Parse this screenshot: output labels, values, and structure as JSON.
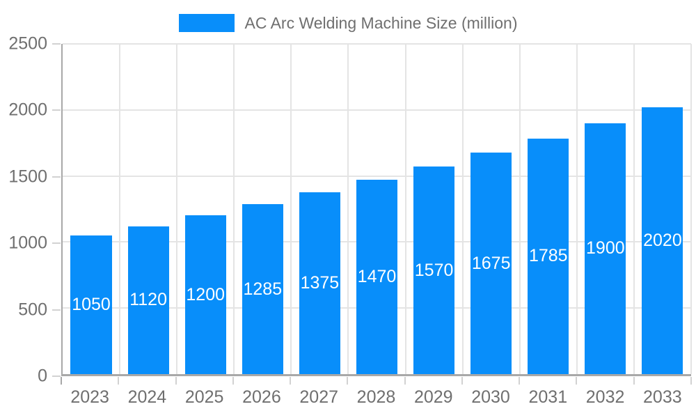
{
  "legend": {
    "label": "AC Arc Welding Machine Size (million)"
  },
  "chart_data": {
    "type": "bar",
    "title": "AC Arc Welding Machine Size (million)",
    "categories": [
      "2023",
      "2024",
      "2025",
      "2026",
      "2027",
      "2028",
      "2029",
      "2030",
      "2031",
      "2032",
      "2033"
    ],
    "series": [
      {
        "name": "AC Arc Welding Machine Size (million)",
        "values": [
          1050,
          1120,
          1200,
          1285,
          1375,
          1470,
          1570,
          1675,
          1785,
          1900,
          2020
        ]
      }
    ],
    "values": [
      1050,
      1120,
      1200,
      1285,
      1375,
      1470,
      1570,
      1675,
      1785,
      1900,
      2020
    ],
    "xlabel": "",
    "ylabel": "",
    "ylim": [
      0,
      2500
    ],
    "yticks": [
      0,
      500,
      1000,
      1500,
      2000,
      2500
    ],
    "grid": true,
    "bar_value_labels": "inside-center",
    "legend_position": "top-center"
  },
  "colors": {
    "bar": "#088EFA",
    "grid": "#E4E4E4",
    "axis": "#A8A8A8",
    "tick": "#D2D2D2",
    "text": "#6F6F6F",
    "bar_label": "#FFFFFF",
    "background": "#FFFFFF"
  }
}
